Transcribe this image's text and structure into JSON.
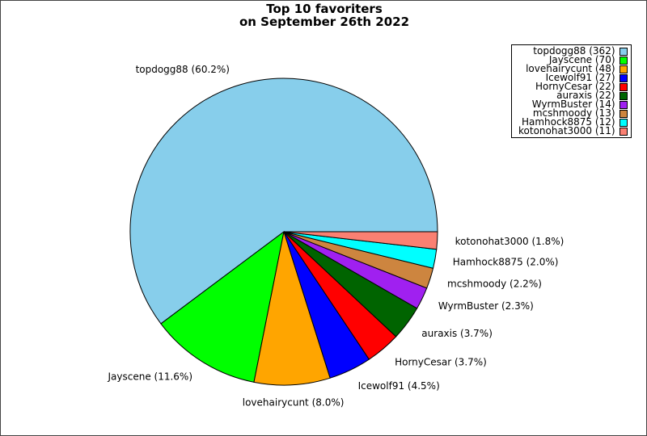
{
  "chart_data": {
    "type": "pie",
    "title_lines": [
      "Top 10 favoriters",
      "on September 26th 2022"
    ],
    "legend_placement": "top-right",
    "slices": [
      {
        "name": "topdogg88",
        "value": 362,
        "percent": "60.2%",
        "color": "#87ceeb",
        "legend": "topdogg88 (362)",
        "label": "topdogg88 (60.2%)"
      },
      {
        "name": "Jayscene",
        "value": 70,
        "percent": "11.6%",
        "color": "#00ff00",
        "legend": "Jayscene (70)",
        "label": "Jayscene (11.6%)"
      },
      {
        "name": "lovehairycunt",
        "value": 48,
        "percent": "8.0%",
        "color": "#ffa500",
        "legend": "lovehairycunt (48)",
        "label": "lovehairycunt (8.0%)"
      },
      {
        "name": "Icewolf91",
        "value": 27,
        "percent": "4.5%",
        "color": "#0000ff",
        "legend": "Icewolf91 (27)",
        "label": "Icewolf91 (4.5%)"
      },
      {
        "name": "HornyCesar",
        "value": 22,
        "percent": "3.7%",
        "color": "#ff0000",
        "legend": "HornyCesar (22)",
        "label": "HornyCesar (3.7%)"
      },
      {
        "name": "auraxis",
        "value": 22,
        "percent": "3.7%",
        "color": "#006400",
        "legend": "auraxis (22)",
        "label": "auraxis (3.7%)"
      },
      {
        "name": "WyrmBuster",
        "value": 14,
        "percent": "2.3%",
        "color": "#a020f0",
        "legend": "WyrmBuster (14)",
        "label": "WyrmBuster (2.3%)"
      },
      {
        "name": "mcshmoody",
        "value": 13,
        "percent": "2.2%",
        "color": "#cd853f",
        "legend": "mcshmoody (13)",
        "label": "mcshmoody (2.2%)"
      },
      {
        "name": "Hamhock8875",
        "value": 12,
        "percent": "2.0%",
        "color": "#00ffff",
        "legend": "Hamhock8875 (12)",
        "label": "Hamhock8875 (2.0%)"
      },
      {
        "name": "kotonohat3000",
        "value": 11,
        "percent": "1.8%",
        "color": "#fa8072",
        "legend": "kotonohat3000 (11)",
        "label": "kotonohat3000 (1.8%)"
      }
    ]
  }
}
